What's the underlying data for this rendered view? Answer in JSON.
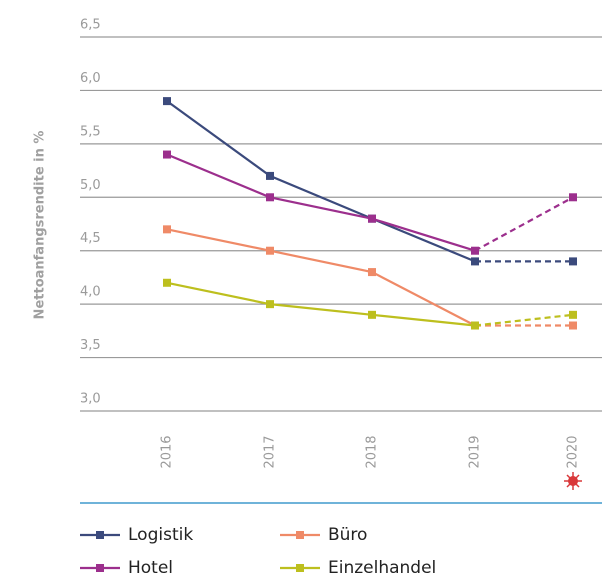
{
  "chart_data": {
    "type": "line",
    "y_label": "Nettoanfangsrendite in %",
    "categories": [
      "2016",
      "2017",
      "2018",
      "2019",
      "2020"
    ],
    "series": [
      {
        "name": "Logistik",
        "color": "#3b4a7c",
        "values": [
          5.9,
          5.2,
          4.8,
          4.4,
          4.4
        ]
      },
      {
        "name": "Hotel",
        "color": "#9c2f8d",
        "values": [
          5.4,
          5.0,
          4.8,
          4.5,
          5.0
        ]
      },
      {
        "name": "Büro",
        "color": "#ef8a67",
        "values": [
          4.7,
          4.5,
          4.3,
          3.8,
          3.8
        ]
      },
      {
        "name": "Einzelhandel",
        "color": "#bdbf1e",
        "values": [
          4.2,
          4.0,
          3.9,
          3.8,
          3.9
        ]
      }
    ],
    "dashed_last_segment": true,
    "ylim": [
      3.0,
      6.5
    ],
    "yticks": [
      {
        "value": 3.0,
        "label": "3,0"
      },
      {
        "value": 3.5,
        "label": "3,5"
      },
      {
        "value": 4.0,
        "label": "4,0"
      },
      {
        "value": 4.5,
        "label": "4,5"
      },
      {
        "value": 5.0,
        "label": "5,0"
      },
      {
        "value": 5.5,
        "label": "5,5"
      },
      {
        "value": 6.0,
        "label": "6,0"
      },
      {
        "value": 6.5,
        "label": "6,5"
      }
    ],
    "grid": true
  }
}
